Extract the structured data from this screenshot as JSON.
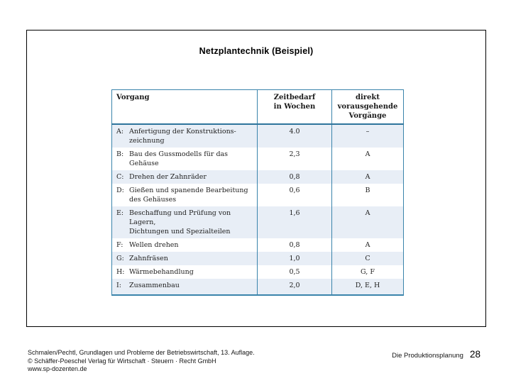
{
  "colors": {
    "border": "#3a84ab",
    "border-dark": "#2e749c",
    "shade": "#e8eef6"
  },
  "slide": {
    "title": "Netzplantechnik (Beispiel)"
  },
  "table": {
    "headers": {
      "col1": "Vorgang",
      "col2": "Zeitbedarf\nin Wochen",
      "col3": "direkt\nvorausgehende\nVorgänge"
    },
    "rows": [
      {
        "id": "A:",
        "desc": "Anfertigung der Konstruktions-\nzeichnung",
        "weeks": "4.0",
        "pred": "–"
      },
      {
        "id": "B:",
        "desc": "Bau des Gussmodells für das Gehäuse",
        "weeks": "2,3",
        "pred": "A"
      },
      {
        "id": "C:",
        "desc": "Drehen der Zahnräder",
        "weeks": "0,8",
        "pred": "A"
      },
      {
        "id": "D:",
        "desc": "Gießen und spanende Bearbeitung\ndes Gehäuses",
        "weeks": "0,6",
        "pred": "B"
      },
      {
        "id": "E:",
        "desc": "Beschaffung und Prüfung von Lagern,\nDichtungen und Spezialteilen",
        "weeks": "1,6",
        "pred": "A"
      },
      {
        "id": "F:",
        "desc": "Wellen drehen",
        "weeks": "0,8",
        "pred": "A"
      },
      {
        "id": "G:",
        "desc": "Zahnfräsen",
        "weeks": "1,0",
        "pred": "C"
      },
      {
        "id": "H:",
        "desc": "Wärmebehandlung",
        "weeks": "0,5",
        "pred": "G, F"
      },
      {
        "id": "I:",
        "desc": "Zusammenbau",
        "weeks": "2,0",
        "pred": "D, E, H"
      }
    ]
  },
  "footer": {
    "source_line1": "Schmalen/Pechtl, Grundlagen und Probleme der Betriebswirtschaft, 13. Auflage.",
    "source_line2": "© Schäffer-Poeschel Verlag für Wirtschaft · Steuern · Recht GmbH",
    "source_line3": "www.sp-dozenten.de",
    "chapter": "Die Produktionsplanung",
    "page_number": "28"
  }
}
